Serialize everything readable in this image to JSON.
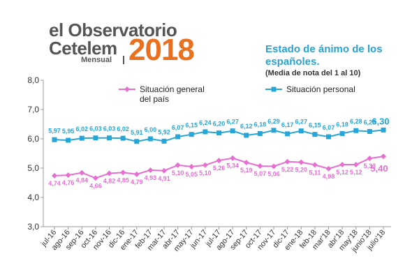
{
  "logo": {
    "line1": "el Observatorio",
    "line2": "Cetelem",
    "year": "2018",
    "sub": "Mensual"
  },
  "heading": {
    "title": "Estado de ánimo de los españoles.",
    "subtitle": "(Media de nota del 1 al 10)"
  },
  "colors": {
    "general": "#e66ed0",
    "personal": "#25a6d6",
    "general_label": "#e66ed0",
    "personal_label": "#25a6d6"
  },
  "chart_data": {
    "type": "line",
    "title": "Estado de ánimo de los españoles.",
    "subtitle": "(Media de nota del 1 al 10)",
    "xlabel": "",
    "ylabel": "",
    "ylim": [
      3.0,
      8.0
    ],
    "yticks": [
      "3,0",
      "4,0",
      "5,0",
      "6,0",
      "7,0",
      "8,0"
    ],
    "grid": false,
    "legend": "top",
    "categories": [
      "jul-16",
      "ago-16",
      "sep-16",
      "oct-16",
      "nov-16",
      "dic-16",
      "ene-17",
      "feb-17",
      "mar-17",
      "abr-17",
      "may-17",
      "jun-17",
      "jul-17",
      "ago-17",
      "sep-17",
      "oct-17",
      "nov-17",
      "dic-17",
      "ene-18",
      "feb-18",
      "mar'18",
      "abr'18",
      "may'18",
      "junio'18",
      "julio'18"
    ],
    "series": [
      {
        "name": "Situación general del país",
        "name_lines": [
          "Situación general",
          "del país"
        ],
        "values": [
          4.74,
          4.76,
          4.84,
          4.66,
          4.82,
          4.85,
          4.79,
          4.93,
          4.91,
          5.1,
          5.05,
          5.1,
          5.26,
          5.34,
          5.19,
          5.07,
          5.06,
          5.22,
          5.2,
          5.11,
          4.98,
          5.12,
          5.12,
          5.33,
          5.4
        ],
        "labels": [
          "4,74",
          "4,76",
          "4,84",
          "4,66",
          "4,82",
          "4,85",
          "4,79",
          "4,93",
          "4,91",
          "5,10",
          "5,05",
          "5,10",
          "5,26",
          "5,34",
          "5,19",
          "5,07",
          "5,06",
          "5,22",
          "5,20",
          "5,11",
          "4,98",
          "5,12",
          "5,12",
          "5,33",
          "5,40"
        ]
      },
      {
        "name": "Situación personal",
        "name_lines": [
          "Situación personal"
        ],
        "values": [
          5.97,
          5.95,
          6.02,
          6.03,
          6.03,
          6.02,
          5.91,
          6.0,
          5.92,
          6.07,
          6.15,
          6.24,
          6.2,
          6.27,
          6.12,
          6.18,
          6.29,
          6.17,
          6.27,
          6.15,
          6.07,
          6.18,
          6.28,
          6.25,
          6.3
        ],
        "labels": [
          "5,97",
          "5,95",
          "6,02",
          "6,03",
          "6,03",
          "6,02",
          "5,91",
          "6,00",
          "5,92",
          "6,07",
          "6,15",
          "6,24",
          "6,20",
          "6,27",
          "6,12",
          "6,18",
          "6,29",
          "6,17",
          "6,27",
          "6,15",
          "6,07",
          "6,18",
          "6,28",
          "6,25",
          "6,30"
        ]
      }
    ]
  }
}
